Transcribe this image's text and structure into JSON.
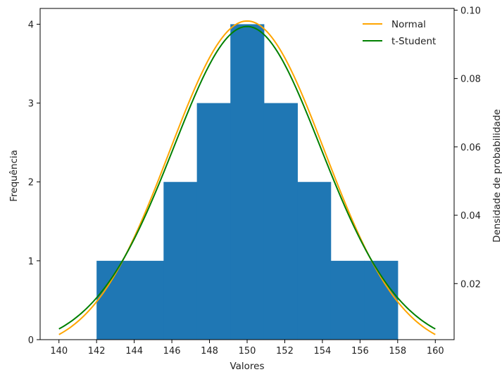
{
  "chart_data": {
    "type": "histogram",
    "xlabel": "Valores",
    "ylabel": "Frequência",
    "y2label": "Densidade de probabilidade",
    "xlim": [
      139,
      161
    ],
    "ylim": [
      0,
      4.2
    ],
    "y2lim": [
      0.0036,
      0.1005
    ],
    "xticks": [
      140,
      142,
      144,
      146,
      148,
      150,
      152,
      154,
      156,
      158,
      160
    ],
    "yticks": [
      0,
      1,
      2,
      3,
      4
    ],
    "y2ticks": [
      0.02,
      0.04,
      0.06,
      0.08,
      0.1
    ],
    "y2ticklabels": [
      "0.02",
      "0.04",
      "0.06",
      "0.08",
      "0.10"
    ],
    "bar_color": "#1f77b4",
    "bins": [
      {
        "start": 142.0,
        "end": 143.78,
        "count": 1
      },
      {
        "start": 143.78,
        "end": 145.56,
        "count": 1
      },
      {
        "start": 145.56,
        "end": 147.33,
        "count": 2
      },
      {
        "start": 147.33,
        "end": 149.11,
        "count": 3
      },
      {
        "start": 149.11,
        "end": 150.89,
        "count": 4
      },
      {
        "start": 150.89,
        "end": 152.67,
        "count": 3
      },
      {
        "start": 152.67,
        "end": 154.44,
        "count": 2
      },
      {
        "start": 154.44,
        "end": 156.22,
        "count": 1
      },
      {
        "start": 156.22,
        "end": 158.0,
        "count": 1
      }
    ],
    "series": [
      {
        "name": "Normal",
        "color": "#ffa500",
        "distribution": "normal",
        "mean": 150,
        "std": 4.12
      },
      {
        "name": "t-Student",
        "color": "#008000",
        "distribution": "t",
        "df": 15,
        "loc": 150,
        "scale": 4.12
      }
    ],
    "curve_range": [
      140,
      160
    ],
    "legend": "top-right",
    "grid": false
  }
}
